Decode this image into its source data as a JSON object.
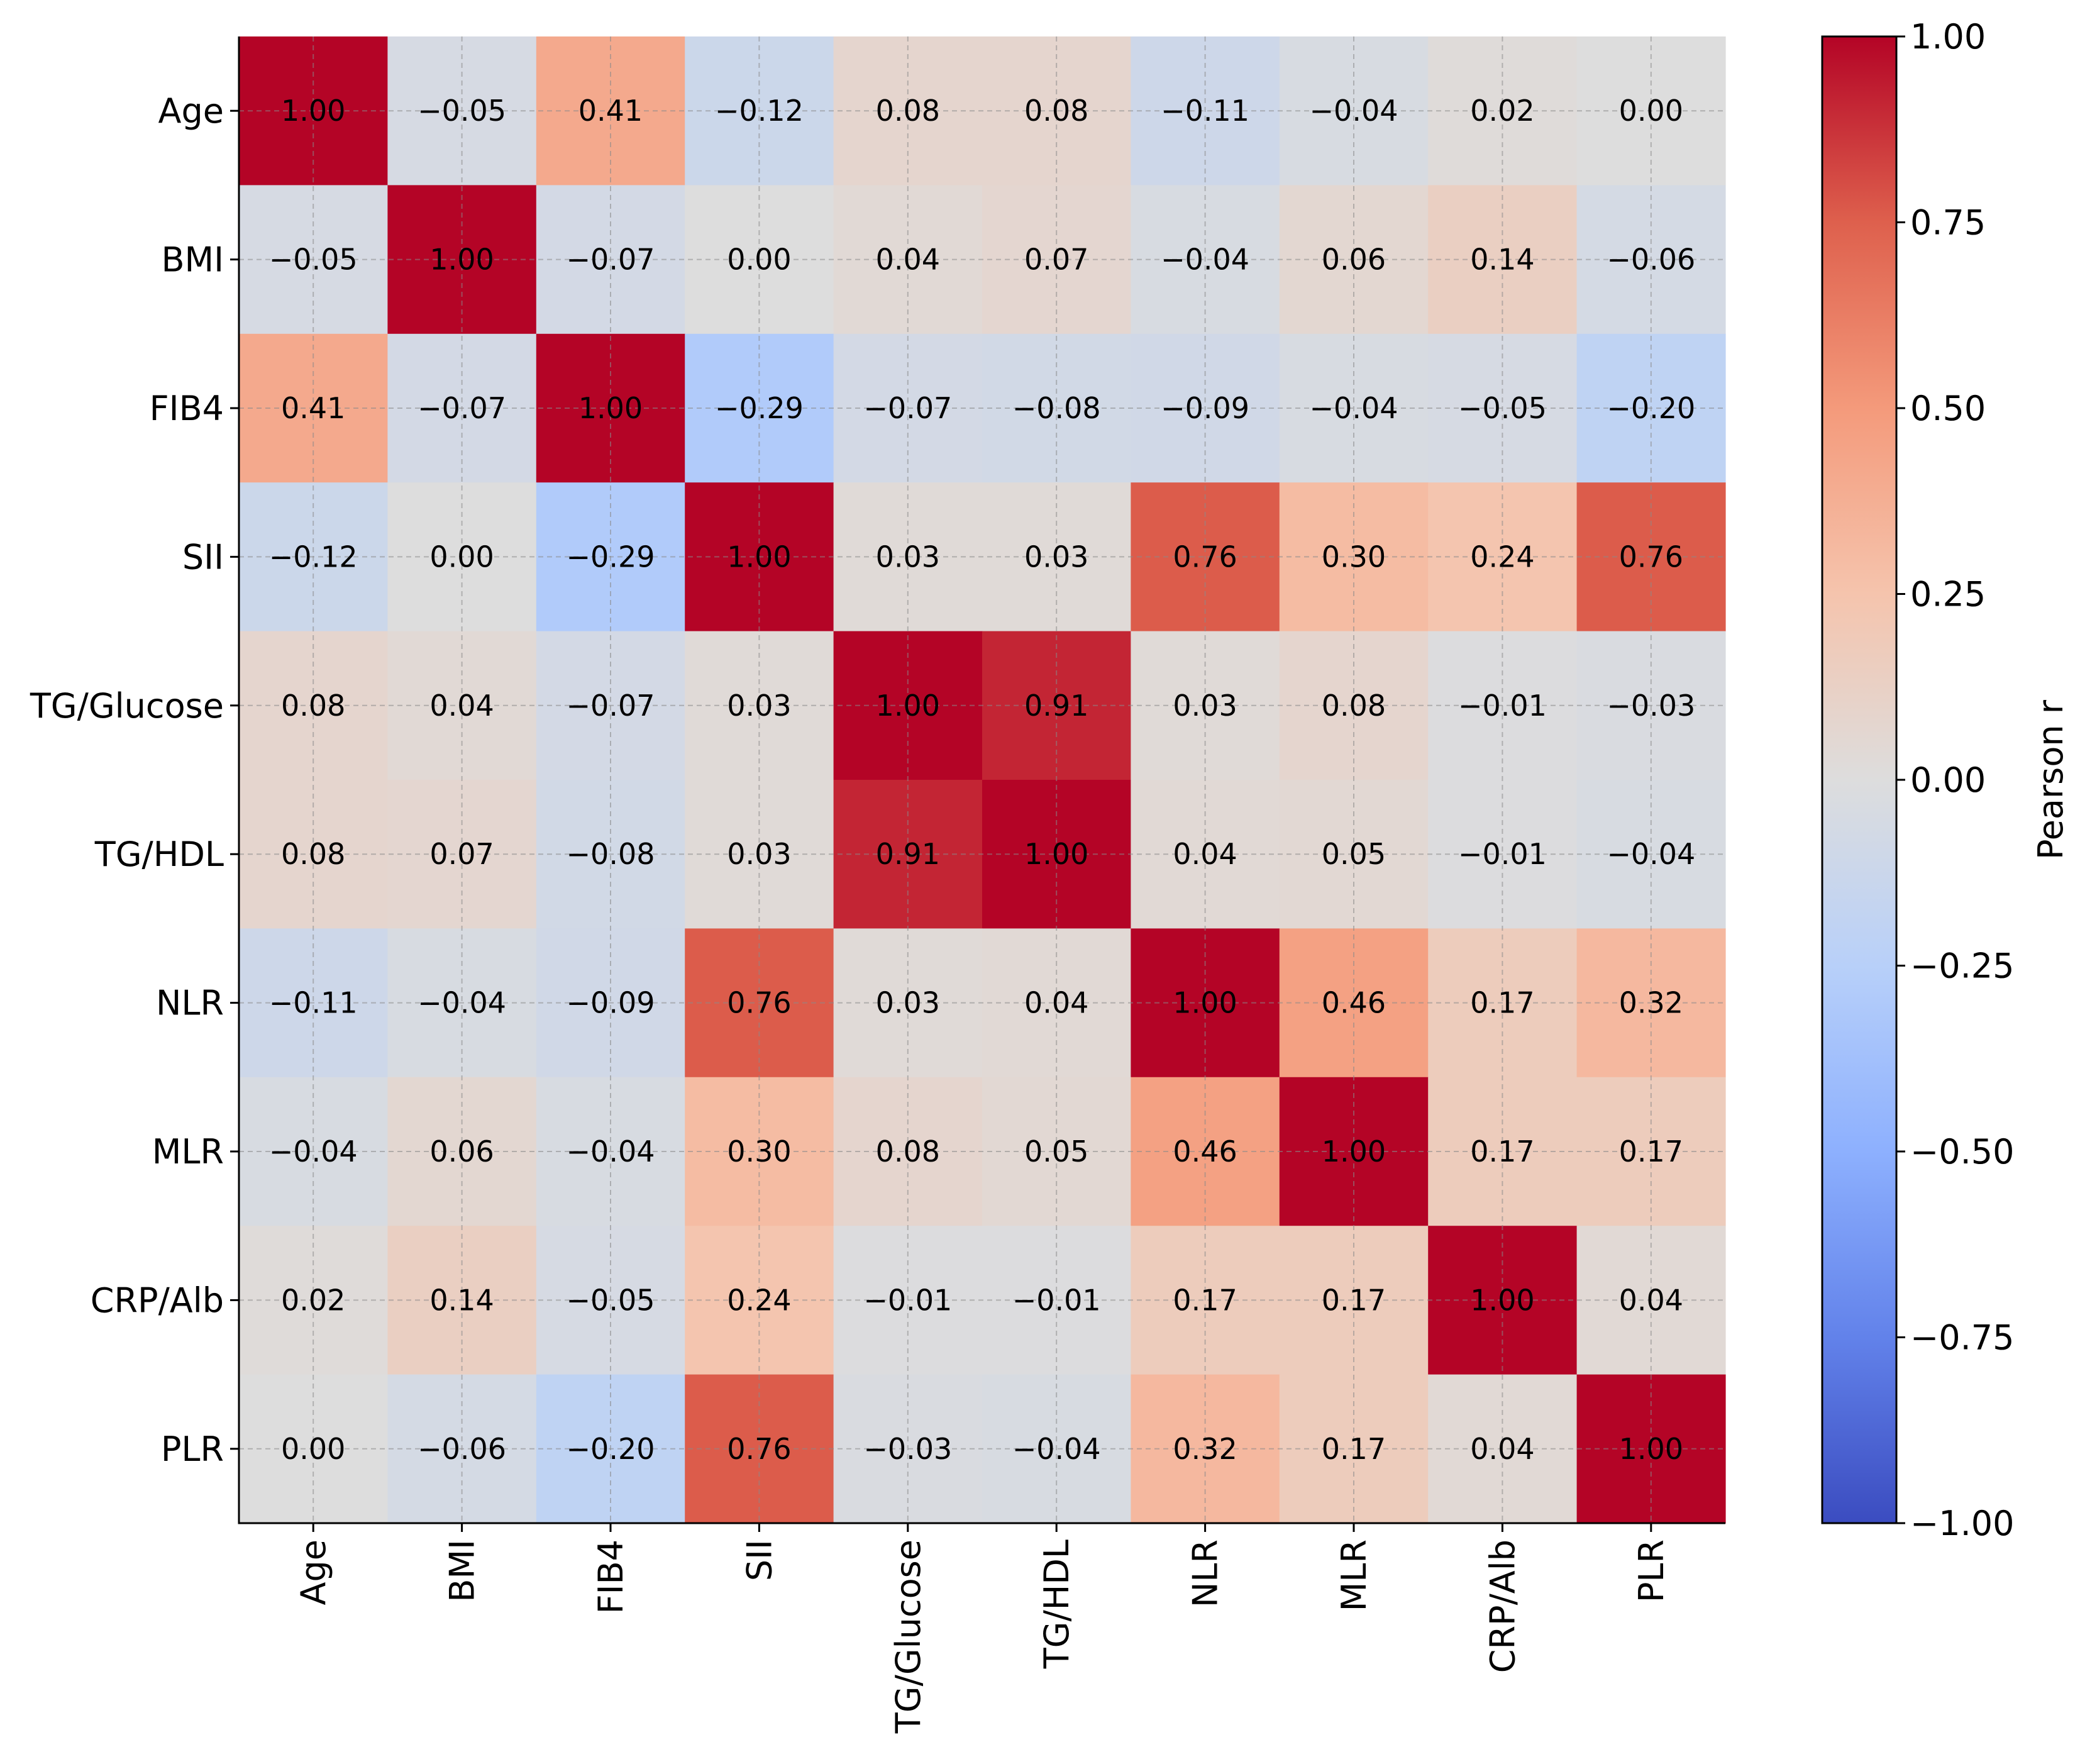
{
  "chart_data": {
    "type": "heatmap",
    "title": "",
    "xlabel": "",
    "ylabel": "",
    "row_labels": [
      "Age",
      "BMI",
      "FIB4",
      "SII",
      "TG/Glucose",
      "TG/HDL",
      "NLR",
      "MLR",
      "CRP/Alb",
      "PLR"
    ],
    "col_labels": [
      "Age",
      "BMI",
      "FIB4",
      "SII",
      "TG/Glucose",
      "TG/HDL",
      "NLR",
      "MLR",
      "CRP/Alb",
      "PLR"
    ],
    "values": [
      [
        1.0,
        -0.05,
        0.41,
        -0.12,
        0.08,
        0.08,
        -0.11,
        -0.04,
        0.02,
        0.0
      ],
      [
        -0.05,
        1.0,
        -0.07,
        0.0,
        0.04,
        0.07,
        -0.04,
        0.06,
        0.14,
        -0.06
      ],
      [
        0.41,
        -0.07,
        1.0,
        -0.29,
        -0.07,
        -0.08,
        -0.09,
        -0.04,
        -0.05,
        -0.2
      ],
      [
        -0.12,
        0.0,
        -0.29,
        1.0,
        0.03,
        0.03,
        0.76,
        0.3,
        0.24,
        0.76
      ],
      [
        0.08,
        0.04,
        -0.07,
        0.03,
        1.0,
        0.91,
        0.03,
        0.08,
        -0.01,
        -0.03
      ],
      [
        0.08,
        0.07,
        -0.08,
        0.03,
        0.91,
        1.0,
        0.04,
        0.05,
        -0.01,
        -0.04
      ],
      [
        -0.11,
        -0.04,
        -0.09,
        0.76,
        0.03,
        0.04,
        1.0,
        0.46,
        0.17,
        0.32
      ],
      [
        -0.04,
        0.06,
        -0.04,
        0.3,
        0.08,
        0.05,
        0.46,
        1.0,
        0.17,
        0.17
      ],
      [
        0.02,
        0.14,
        -0.05,
        0.24,
        -0.01,
        -0.01,
        0.17,
        0.17,
        1.0,
        0.04
      ],
      [
        0.0,
        -0.06,
        -0.2,
        0.76,
        -0.03,
        -0.04,
        0.32,
        0.17,
        0.04,
        1.0
      ]
    ],
    "value_range": [
      -1.0,
      1.0
    ],
    "colormap": "coolwarm",
    "grid": true,
    "colorbar": {
      "label": "Pearson r",
      "ticks": [
        1.0,
        0.75,
        0.5,
        0.25,
        0.0,
        -0.25,
        -0.5,
        -0.75,
        -1.0
      ],
      "tick_labels": [
        "1.00",
        "0.75",
        "0.50",
        "0.25",
        "0.00",
        "−0.25",
        "−0.50",
        "−0.75",
        "−1.00"
      ]
    }
  }
}
